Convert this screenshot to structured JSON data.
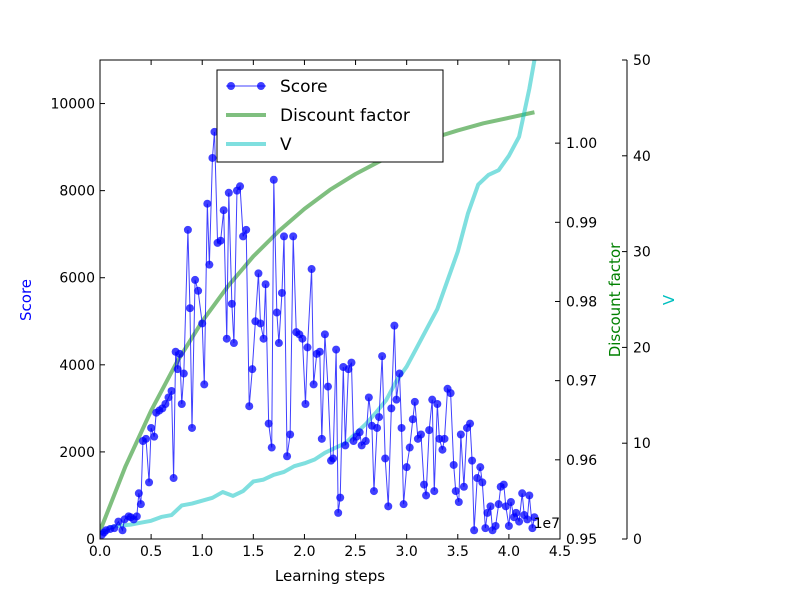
{
  "chart_data": {
    "type": "line",
    "xlabel": "Learning steps",
    "x_offset_text": "1e7",
    "xlim": [
      0,
      4.5
    ],
    "xticks": [
      "0.0",
      "0.5",
      "1.0",
      "1.5",
      "2.0",
      "2.5",
      "3.0",
      "3.5",
      "4.0",
      "4.5"
    ],
    "axes": {
      "score": {
        "label": "Score",
        "color": "#0000ff",
        "lim": [
          0,
          11000
        ],
        "ticks": [
          "0",
          "2000",
          "4000",
          "6000",
          "8000",
          "10000"
        ]
      },
      "discount": {
        "label": "Discount factor",
        "color": "#008000",
        "lim": [
          0.95,
          1.0105
        ],
        "ticks": [
          "0.95",
          "0.96",
          "0.97",
          "0.98",
          "0.99",
          "1.00"
        ]
      },
      "v": {
        "label": "V",
        "color": "#00bfbf",
        "lim": [
          0,
          50
        ],
        "ticks": [
          "0",
          "10",
          "20",
          "30",
          "40",
          "50"
        ]
      }
    },
    "legend": {
      "placement": "upper center",
      "entries": [
        "Score",
        "Discount factor",
        "V"
      ]
    },
    "series": [
      {
        "name": "Score",
        "axis": "score",
        "color": "#0000ff",
        "marker": "circle",
        "points": [
          [
            0.02,
            100
          ],
          [
            0.04,
            150
          ],
          [
            0.06,
            200
          ],
          [
            0.1,
            230
          ],
          [
            0.14,
            250
          ],
          [
            0.18,
            400
          ],
          [
            0.22,
            200
          ],
          [
            0.24,
            450
          ],
          [
            0.28,
            520
          ],
          [
            0.3,
            500
          ],
          [
            0.33,
            450
          ],
          [
            0.36,
            520
          ],
          [
            0.38,
            1050
          ],
          [
            0.4,
            800
          ],
          [
            0.42,
            2250
          ],
          [
            0.45,
            2300
          ],
          [
            0.48,
            1300
          ],
          [
            0.5,
            2550
          ],
          [
            0.53,
            2350
          ],
          [
            0.55,
            2900
          ],
          [
            0.58,
            2950
          ],
          [
            0.61,
            3000
          ],
          [
            0.64,
            3100
          ],
          [
            0.67,
            3250
          ],
          [
            0.7,
            3400
          ],
          [
            0.72,
            1400
          ],
          [
            0.74,
            4300
          ],
          [
            0.76,
            3900
          ],
          [
            0.78,
            4250
          ],
          [
            0.8,
            3100
          ],
          [
            0.82,
            3800
          ],
          [
            0.86,
            7100
          ],
          [
            0.88,
            5300
          ],
          [
            0.9,
            2550
          ],
          [
            0.93,
            5950
          ],
          [
            0.96,
            5700
          ],
          [
            1.0,
            4950
          ],
          [
            1.02,
            3550
          ],
          [
            1.05,
            7700
          ],
          [
            1.07,
            6300
          ],
          [
            1.1,
            8750
          ],
          [
            1.12,
            9350
          ],
          [
            1.15,
            6800
          ],
          [
            1.18,
            6850
          ],
          [
            1.21,
            7550
          ],
          [
            1.24,
            4600
          ],
          [
            1.26,
            7950
          ],
          [
            1.29,
            5400
          ],
          [
            1.31,
            4500
          ],
          [
            1.34,
            8000
          ],
          [
            1.37,
            8100
          ],
          [
            1.4,
            6950
          ],
          [
            1.43,
            7100
          ],
          [
            1.46,
            3050
          ],
          [
            1.49,
            3900
          ],
          [
            1.52,
            5000
          ],
          [
            1.55,
            6100
          ],
          [
            1.57,
            4950
          ],
          [
            1.6,
            4600
          ],
          [
            1.62,
            5850
          ],
          [
            1.65,
            2650
          ],
          [
            1.68,
            2100
          ],
          [
            1.7,
            8250
          ],
          [
            1.73,
            5200
          ],
          [
            1.75,
            4500
          ],
          [
            1.78,
            5650
          ],
          [
            1.8,
            6950
          ],
          [
            1.83,
            1900
          ],
          [
            1.86,
            2400
          ],
          [
            1.89,
            6950
          ],
          [
            1.92,
            4750
          ],
          [
            1.95,
            4700
          ],
          [
            1.98,
            4600
          ],
          [
            2.01,
            3100
          ],
          [
            2.03,
            4400
          ],
          [
            2.07,
            6200
          ],
          [
            2.09,
            3550
          ],
          [
            2.12,
            4250
          ],
          [
            2.15,
            4300
          ],
          [
            2.17,
            2300
          ],
          [
            2.2,
            4700
          ],
          [
            2.23,
            3500
          ],
          [
            2.26,
            1800
          ],
          [
            2.28,
            1850
          ],
          [
            2.31,
            4350
          ],
          [
            2.33,
            600
          ],
          [
            2.35,
            950
          ],
          [
            2.38,
            3950
          ],
          [
            2.4,
            2150
          ],
          [
            2.43,
            3900
          ],
          [
            2.46,
            4050
          ],
          [
            2.48,
            2250
          ],
          [
            2.51,
            2350
          ],
          [
            2.54,
            2450
          ],
          [
            2.56,
            2150
          ],
          [
            2.6,
            2250
          ],
          [
            2.63,
            3250
          ],
          [
            2.66,
            2600
          ],
          [
            2.68,
            1100
          ],
          [
            2.71,
            2550
          ],
          [
            2.73,
            2800
          ],
          [
            2.76,
            4200
          ],
          [
            2.79,
            1850
          ],
          [
            2.82,
            750
          ],
          [
            2.85,
            3000
          ],
          [
            2.88,
            4900
          ],
          [
            2.9,
            3200
          ],
          [
            2.93,
            3800
          ],
          [
            2.95,
            2550
          ],
          [
            2.97,
            800
          ],
          [
            3.0,
            1650
          ],
          [
            3.03,
            2100
          ],
          [
            3.06,
            2750
          ],
          [
            3.08,
            3150
          ],
          [
            3.11,
            2300
          ],
          [
            3.14,
            2400
          ],
          [
            3.17,
            1250
          ],
          [
            3.19,
            1000
          ],
          [
            3.22,
            2500
          ],
          [
            3.25,
            3200
          ],
          [
            3.27,
            1100
          ],
          [
            3.3,
            3100
          ],
          [
            3.32,
            2300
          ],
          [
            3.35,
            2050
          ],
          [
            3.37,
            2300
          ],
          [
            3.4,
            3450
          ],
          [
            3.43,
            3350
          ],
          [
            3.46,
            1700
          ],
          [
            3.48,
            1100
          ],
          [
            3.51,
            850
          ],
          [
            3.53,
            2400
          ],
          [
            3.56,
            1200
          ],
          [
            3.59,
            2550
          ],
          [
            3.62,
            2650
          ],
          [
            3.64,
            1800
          ],
          [
            3.66,
            200
          ],
          [
            3.69,
            1400
          ],
          [
            3.72,
            1650
          ],
          [
            3.74,
            1300
          ],
          [
            3.77,
            250
          ],
          [
            3.79,
            600
          ],
          [
            3.82,
            750
          ],
          [
            3.84,
            200
          ],
          [
            3.87,
            300
          ],
          [
            3.9,
            800
          ],
          [
            3.92,
            1200
          ],
          [
            3.95,
            1250
          ],
          [
            3.97,
            750
          ],
          [
            4.0,
            300
          ],
          [
            4.02,
            850
          ],
          [
            4.05,
            500
          ],
          [
            4.07,
            600
          ],
          [
            4.1,
            400
          ],
          [
            4.13,
            1050
          ],
          [
            4.15,
            550
          ],
          [
            4.18,
            450
          ],
          [
            4.2,
            1000
          ],
          [
            4.23,
            250
          ],
          [
            4.25,
            500
          ]
        ]
      },
      {
        "name": "Discount factor",
        "axis": "discount",
        "color": "#008000",
        "alpha": 0.5,
        "points": [
          [
            0.0,
            0.951
          ],
          [
            0.25,
            0.9592
          ],
          [
            0.5,
            0.9662
          ],
          [
            0.75,
            0.9723
          ],
          [
            1.0,
            0.9775
          ],
          [
            1.25,
            0.9819
          ],
          [
            1.5,
            0.9857
          ],
          [
            1.75,
            0.9889
          ],
          [
            2.0,
            0.9917
          ],
          [
            2.25,
            0.9941
          ],
          [
            2.5,
            0.9961
          ],
          [
            2.75,
            0.9978
          ],
          [
            3.0,
            0.9993
          ],
          [
            3.25,
            1.0006
          ],
          [
            3.5,
            1.0016
          ],
          [
            3.75,
            1.0025
          ],
          [
            4.0,
            1.0032
          ],
          [
            4.25,
            1.0039
          ]
        ]
      },
      {
        "name": "V",
        "axis": "v",
        "color": "#00bfbf",
        "alpha": 0.5,
        "points": [
          [
            0.0,
            0.5
          ],
          [
            0.1,
            1.2
          ],
          [
            0.2,
            1.4
          ],
          [
            0.3,
            1.5
          ],
          [
            0.4,
            1.7
          ],
          [
            0.5,
            1.9
          ],
          [
            0.6,
            2.3
          ],
          [
            0.7,
            2.5
          ],
          [
            0.8,
            3.5
          ],
          [
            0.9,
            3.7
          ],
          [
            1.0,
            4.0
          ],
          [
            1.1,
            4.3
          ],
          [
            1.2,
            4.9
          ],
          [
            1.3,
            4.5
          ],
          [
            1.4,
            5.0
          ],
          [
            1.5,
            6.0
          ],
          [
            1.6,
            6.2
          ],
          [
            1.7,
            6.7
          ],
          [
            1.8,
            7.0
          ],
          [
            1.9,
            7.6
          ],
          [
            2.0,
            7.9
          ],
          [
            2.1,
            8.3
          ],
          [
            2.2,
            9.0
          ],
          [
            2.3,
            9.5
          ],
          [
            2.4,
            10.0
          ],
          [
            2.5,
            11.0
          ],
          [
            2.6,
            12.0
          ],
          [
            2.7,
            13.2
          ],
          [
            2.8,
            14.5
          ],
          [
            2.9,
            16.5
          ],
          [
            3.0,
            18.0
          ],
          [
            3.1,
            20.0
          ],
          [
            3.2,
            22.0
          ],
          [
            3.3,
            24.0
          ],
          [
            3.4,
            27.0
          ],
          [
            3.5,
            30.0
          ],
          [
            3.6,
            34.0
          ],
          [
            3.7,
            37.0
          ],
          [
            3.8,
            38.0
          ],
          [
            3.9,
            38.5
          ],
          [
            4.0,
            40.0
          ],
          [
            4.1,
            42.0
          ],
          [
            4.2,
            47.0
          ],
          [
            4.25,
            50.0
          ]
        ]
      }
    ]
  }
}
